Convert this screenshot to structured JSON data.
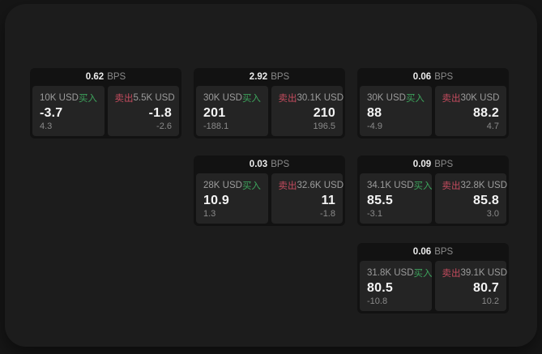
{
  "page": {
    "outer_bg": "#161616",
    "panel_bg": "#1c1c1c",
    "card_bg": "#121212",
    "subpanel_bg": "#242424"
  },
  "labels": {
    "bps": "BPS",
    "buy": "买入",
    "sell": "卖出"
  },
  "colors": {
    "buy": "#3da35c",
    "sell": "#c44b5e",
    "price": "#f4f4f4",
    "muted": "#9c9c9c"
  },
  "cards": [
    {
      "bps": "0.62",
      "buy": {
        "amount": "10K USD",
        "price": "-3.7",
        "sub": "4.3"
      },
      "sell": {
        "amount": "5.5K USD",
        "price": "-1.8",
        "sub": "-2.6"
      }
    },
    {
      "bps": "2.92",
      "buy": {
        "amount": "30K USD",
        "price": "201",
        "sub": "-188.1"
      },
      "sell": {
        "amount": "30.1K USD",
        "price": "210",
        "sub": "196.5"
      }
    },
    {
      "bps": "0.06",
      "buy": {
        "amount": "30K USD",
        "price": "88",
        "sub": "-4.9"
      },
      "sell": {
        "amount": "30K USD",
        "price": "88.2",
        "sub": "4.7"
      }
    },
    {
      "bps": "0.03",
      "buy": {
        "amount": "28K USD",
        "price": "10.9",
        "sub": "1.3"
      },
      "sell": {
        "amount": "32.6K USD",
        "price": "11",
        "sub": "-1.8"
      }
    },
    {
      "bps": "0.09",
      "buy": {
        "amount": "34.1K USD",
        "price": "85.5",
        "sub": "-3.1"
      },
      "sell": {
        "amount": "32.8K USD",
        "price": "85.8",
        "sub": "3.0"
      }
    },
    {
      "bps": "0.06",
      "buy": {
        "amount": "31.8K USD",
        "price": "80.5",
        "sub": "-10.8"
      },
      "sell": {
        "amount": "39.1K USD",
        "price": "80.7",
        "sub": "10.2"
      }
    }
  ]
}
